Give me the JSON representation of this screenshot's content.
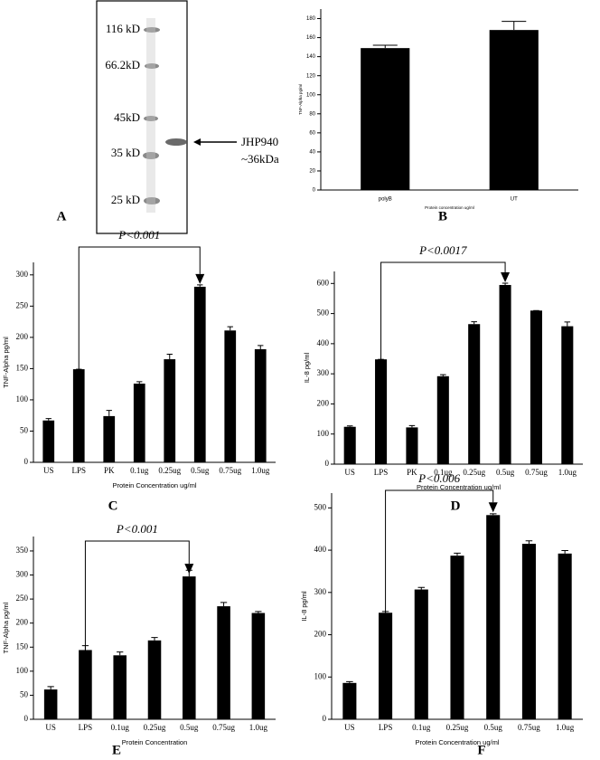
{
  "gel": {
    "markers": [
      "116 kD",
      "66.2kD",
      "45kD",
      "35 kD",
      "25 kD"
    ],
    "band_label": [
      "JHP940",
      "~36kDa"
    ],
    "panel": "A"
  },
  "chart_data": [
    {
      "type": "bar",
      "panel": "B",
      "y_label": "TNF-Alpha pg/ml",
      "x_label": "Protein concentration ug/ml",
      "categories": [
        "polyB",
        "UT"
      ],
      "values": [
        149,
        168
      ],
      "errors": [
        3,
        9
      ],
      "color": "#000000",
      "ylim": [
        0,
        190
      ],
      "yticks": [
        0,
        20,
        40,
        60,
        80,
        100,
        120,
        140,
        160,
        180
      ]
    },
    {
      "type": "bar",
      "panel": "C",
      "annotation": "P<0.001",
      "y_label": "TNF-Alpha pg/ml",
      "x_label": "Protein Concentration ug/ml",
      "categories": [
        "US",
        "LPS",
        "PK",
        "0.1ug",
        "0.25ug",
        "0.5ug",
        "0.75ug",
        "1.0ug"
      ],
      "values": [
        67,
        149,
        74,
        126,
        165,
        281,
        211,
        181
      ],
      "errors": [
        3,
        0,
        9,
        3,
        8,
        3,
        6,
        6
      ],
      "color": "#000000",
      "ylim": [
        0,
        320
      ],
      "yticks": [
        0,
        50,
        100,
        150,
        200,
        250,
        300
      ]
    },
    {
      "type": "bar",
      "panel": "D",
      "annotation": "P<0.0017",
      "y_label": "IL-8 pg/ml",
      "x_label": "Protein Concentration ug/ml",
      "categories": [
        "US",
        "LPS",
        "PK",
        "0.1ug",
        "0.25ug",
        "0.5ug",
        "0.75ug",
        "1.0ug"
      ],
      "values": [
        124,
        348,
        122,
        292,
        465,
        595,
        510,
        458
      ],
      "errors": [
        3,
        0,
        6,
        5,
        8,
        6,
        0,
        14
      ],
      "color": "#000000",
      "ylim": [
        0,
        640
      ],
      "yticks": [
        0,
        100,
        200,
        300,
        400,
        500,
        600
      ]
    },
    {
      "type": "bar",
      "panel": "E",
      "annotation": "P<0.001",
      "y_label": "TNF-Alpha pg/ml",
      "x_label": "Protein Concentration",
      "categories": [
        "US",
        "LPS",
        "0.1ug",
        "0.25ug",
        "0.5ug",
        "0.75ug",
        "1.0ug"
      ],
      "values": [
        62,
        144,
        133,
        164,
        297,
        235,
        221
      ],
      "errors": [
        6,
        9,
        7,
        6,
        13,
        8,
        3
      ],
      "color": "#000000",
      "ylim": [
        0,
        380
      ],
      "yticks": [
        0,
        50,
        100,
        150,
        200,
        250,
        300,
        350
      ]
    },
    {
      "type": "bar",
      "panel": "F",
      "annotation": "P<0.006",
      "y_label": "IL-8 pg/ml",
      "x_label": "Protein Concentration ug/ml",
      "categories": [
        "US",
        "LPS",
        "0.1ug",
        "0.25ug",
        "0.5ug",
        "0.75ug",
        "1.0ug"
      ],
      "values": [
        86,
        252,
        307,
        387,
        483,
        415,
        392
      ],
      "errors": [
        3,
        3,
        5,
        6,
        3,
        7,
        7
      ],
      "color": "#000000",
      "ylim": [
        0,
        535
      ],
      "yticks": [
        0,
        100,
        200,
        300,
        400,
        500
      ]
    }
  ]
}
